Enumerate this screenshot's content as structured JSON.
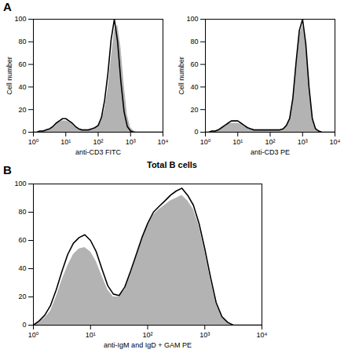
{
  "chart_data": [
    {
      "type": "histogram",
      "title": "A",
      "x_label": "anti-CD3 FITC",
      "y_label": "Cell number",
      "log": "x",
      "xlim": [
        1,
        10000
      ],
      "xticks": [
        {
          "value": 1,
          "label": "10⁰"
        },
        {
          "value": 10,
          "label": "10¹"
        },
        {
          "value": 100,
          "label": "10²"
        },
        {
          "value": 1000,
          "label": "10³"
        },
        {
          "value": 10000,
          "label": "10⁴"
        }
      ],
      "ylim": [
        0,
        100
      ],
      "yticks": [
        0,
        20,
        40,
        60,
        80,
        100
      ],
      "x": [
        1,
        1.26,
        1.58,
        2,
        2.51,
        3.16,
        3.98,
        5.01,
        6.31,
        7.94,
        10,
        12.6,
        15.8,
        20,
        25.1,
        31.6,
        39.8,
        50.1,
        63.1,
        79.4,
        100,
        126,
        158,
        200,
        251,
        316,
        398,
        501,
        631,
        794,
        1000,
        1260,
        1580,
        2000,
        2510,
        3160,
        3980,
        5010,
        6310,
        7940,
        10000
      ],
      "series": [
        {
          "type": "area",
          "color": "#b3b3b3",
          "values": [
            0,
            0,
            0,
            1,
            2,
            3,
            5,
            7,
            9,
            10,
            10,
            9,
            7,
            5,
            3,
            2,
            2,
            2,
            2,
            3,
            5,
            10,
            20,
            38,
            65,
            90,
            95,
            75,
            42,
            15,
            4,
            1,
            0,
            0,
            0,
            0,
            0,
            0,
            0,
            0,
            0
          ]
        },
        {
          "type": "line",
          "color": "#000000",
          "values": [
            0,
            0,
            1,
            1,
            2,
            3,
            5,
            8,
            10,
            12,
            12,
            10,
            8,
            5,
            3,
            2,
            2,
            2,
            3,
            4,
            6,
            13,
            28,
            52,
            82,
            100,
            80,
            45,
            18,
            5,
            1,
            0,
            0,
            0,
            0,
            0,
            0,
            0,
            0,
            0,
            0
          ]
        }
      ]
    },
    {
      "type": "histogram",
      "x_label": "anti-CD3 PE",
      "y_label": "Cell number",
      "log": "x",
      "annotations": [
        "Total B cells"
      ],
      "xlim": [
        1,
        10000
      ],
      "xticks": [
        {
          "value": 1,
          "label": "10⁰"
        },
        {
          "value": 10,
          "label": "10¹"
        },
        {
          "value": 100,
          "label": "10²"
        },
        {
          "value": 1000,
          "label": "10³"
        },
        {
          "value": 10000,
          "label": "10⁴"
        }
      ],
      "ylim": [
        0,
        100
      ],
      "yticks": [
        0,
        20,
        40,
        60,
        80,
        100
      ],
      "x": [
        1,
        1.26,
        1.58,
        2,
        2.51,
        3.16,
        3.98,
        5.01,
        6.31,
        7.94,
        10,
        12.6,
        15.8,
        20,
        25.1,
        31.6,
        39.8,
        50.1,
        63.1,
        79.4,
        100,
        126,
        158,
        200,
        251,
        316,
        398,
        501,
        631,
        794,
        1000,
        1260,
        1580,
        2000,
        2510,
        3160,
        3980,
        5010,
        6310,
        7940,
        10000
      ],
      "series": [
        {
          "type": "area",
          "color": "#b3b3b3",
          "values": [
            0,
            0,
            0,
            1,
            2,
            3,
            5,
            7,
            8,
            8,
            8,
            7,
            5,
            4,
            3,
            2,
            2,
            2,
            2,
            2,
            2,
            2,
            2,
            2,
            3,
            5,
            10,
            25,
            55,
            85,
            95,
            80,
            45,
            15,
            4,
            1,
            0,
            0,
            0,
            0,
            0
          ]
        },
        {
          "type": "line",
          "color": "#000000",
          "values": [
            0,
            0,
            1,
            1,
            2,
            4,
            6,
            8,
            10,
            10,
            10,
            8,
            6,
            4,
            3,
            2,
            2,
            2,
            2,
            2,
            2,
            2,
            2,
            2,
            3,
            6,
            12,
            30,
            62,
            90,
            100,
            78,
            40,
            12,
            3,
            1,
            0,
            0,
            0,
            0,
            0
          ]
        }
      ]
    },
    {
      "type": "histogram",
      "title": "B",
      "x_label": "anti-IgM and IgD + GAM PE",
      "log": "x",
      "xlim": [
        1,
        10000
      ],
      "xticks": [
        {
          "value": 1,
          "label": "10⁰"
        },
        {
          "value": 10,
          "label": "10¹"
        },
        {
          "value": 100,
          "label": "10²"
        },
        {
          "value": 1000,
          "label": "10³"
        },
        {
          "value": 10000,
          "label": "10⁴"
        }
      ],
      "ylim": [
        0,
        100
      ],
      "yticks": [
        0,
        20,
        40,
        60,
        80,
        100
      ],
      "x": [
        1,
        1.26,
        1.58,
        2,
        2.51,
        3.16,
        3.98,
        5.01,
        6.31,
        7.94,
        10,
        12.6,
        15.8,
        20,
        25.1,
        31.6,
        39.8,
        50.1,
        63.1,
        79.4,
        100,
        126,
        158,
        200,
        251,
        316,
        398,
        501,
        631,
        794,
        1000,
        1260,
        1580,
        2000,
        2510,
        3160,
        3980,
        5010,
        6310,
        7940,
        10000
      ],
      "series": [
        {
          "type": "area",
          "color": "#b3b3b3",
          "values": [
            0,
            2,
            5,
            10,
            20,
            32,
            42,
            50,
            54,
            55,
            52,
            45,
            35,
            25,
            20,
            20,
            25,
            35,
            48,
            60,
            70,
            78,
            82,
            85,
            88,
            90,
            92,
            88,
            82,
            70,
            52,
            32,
            15,
            6,
            2,
            0,
            0,
            0,
            0,
            0,
            0
          ]
        },
        {
          "type": "line",
          "color": "#000000",
          "values": [
            0,
            3,
            7,
            14,
            25,
            38,
            50,
            58,
            62,
            64,
            60,
            52,
            40,
            28,
            22,
            21,
            27,
            38,
            50,
            62,
            72,
            80,
            84,
            88,
            92,
            95,
            97,
            92,
            85,
            72,
            54,
            34,
            16,
            6,
            2,
            0,
            0,
            0,
            0,
            0,
            0
          ]
        }
      ]
    }
  ]
}
